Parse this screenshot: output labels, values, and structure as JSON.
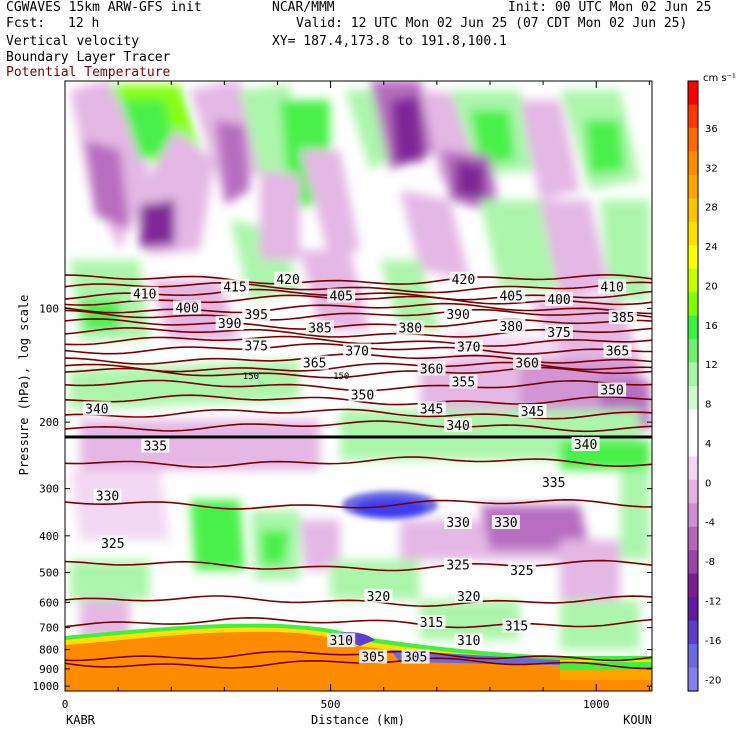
{
  "header": {
    "model": "CGWAVES 15km ARW-GFS init",
    "org": "NCAR/MMM",
    "init": "Init: 00 UTC Mon 02 Jun 25",
    "fcst_label": "Fcst:",
    "fcst_value": "12 h",
    "valid": "Valid: 12 UTC Mon 02 Jun 25 (07 CDT Mon 02 Jun 25)",
    "field1": "Vertical velocity",
    "field2": "Boundary Layer Tracer",
    "field3": "Potential Temperature",
    "xy": "XY= 187.4,173.8 to 191.8,100.1"
  },
  "chart_data": {
    "type": "heatmap",
    "xlabel": "Distance (km)",
    "ylabel": "Pressure (hPa), log scale",
    "x_ticks": [
      0,
      500,
      1000
    ],
    "xlim": [
      0,
      1105
    ],
    "ylim": [
      1030,
      25
    ],
    "y_scale": "log",
    "y_ticks": [
      100,
      200,
      300,
      400,
      500,
      600,
      700,
      800,
      900,
      1000
    ],
    "left_endpoint": "KABR",
    "right_endpoint": "KOUN",
    "colorbar": {
      "units": "cm s⁻¹",
      "tick_labels": [
        "36",
        "32",
        "28",
        "24",
        "20",
        "16",
        "12",
        "8",
        "4",
        "0",
        "-4",
        "-8",
        "-12",
        "-16",
        "-20"
      ],
      "colors": [
        "#ff0000",
        "#ff3a00",
        "#ff6a00",
        "#ff8c00",
        "#ffa500",
        "#ffc400",
        "#ffe100",
        "#ffff00",
        "#c8ff00",
        "#80ff00",
        "#40f040",
        "#70f070",
        "#a8f5a8",
        "#d0fad0",
        "#ffffff",
        "#ffffff",
        "#f2d6f2",
        "#e3b4e3",
        "#cf8fd2",
        "#b466bd",
        "#9a44a8",
        "#7a1f93",
        "#5f1c9e",
        "#5b3fc8",
        "#6a6ae0",
        "#8080f0"
      ]
    },
    "theta_contours_K": [
      {
        "value": 305,
        "p_hPa": 870
      },
      {
        "value": 310,
        "p_hPa": 830
      },
      {
        "value": 315,
        "p_hPa": 680
      },
      {
        "value": 320,
        "p_hPa": 595
      },
      {
        "value": 325,
        "p_hPa": 480
      },
      {
        "value": 330,
        "p_hPa": 330
      },
      {
        "value": 335,
        "p_hPa": 255
      },
      {
        "value": 340,
        "p_hPa": 205
      },
      {
        "value": 345,
        "p_hPa": 190
      },
      {
        "value": 350,
        "p_hPa": 175
      },
      {
        "value": 355,
        "p_hPa": 160
      },
      {
        "value": 360,
        "p_hPa": 148
      },
      {
        "value": 365,
        "p_hPa": 143
      },
      {
        "value": 370,
        "p_hPa": 136
      },
      {
        "value": 375,
        "p_hPa": 128
      },
      {
        "value": 380,
        "p_hPa": 122
      },
      {
        "value": 385,
        "p_hPa": 116
      },
      {
        "value": 390,
        "p_hPa": 110
      },
      {
        "value": 395,
        "p_hPa": 104
      },
      {
        "value": 400,
        "p_hPa": 100
      },
      {
        "value": 405,
        "p_hPa": 95
      },
      {
        "value": 410,
        "p_hPa": 92
      },
      {
        "value": 415,
        "p_hPa": 88
      },
      {
        "value": 420,
        "p_hPa": 84
      }
    ],
    "contour_labels": [
      {
        "text": "420",
        "x": 420,
        "p": 84
      },
      {
        "text": "420",
        "x": 750,
        "p": 84
      },
      {
        "text": "415",
        "x": 320,
        "p": 88
      },
      {
        "text": "410",
        "x": 150,
        "p": 92
      },
      {
        "text": "405",
        "x": 520,
        "p": 93
      },
      {
        "text": "405",
        "x": 840,
        "p": 93
      },
      {
        "text": "400",
        "x": 930,
        "p": 95
      },
      {
        "text": "410",
        "x": 1030,
        "p": 88
      },
      {
        "text": "400",
        "x": 230,
        "p": 100
      },
      {
        "text": "395",
        "x": 360,
        "p": 104
      },
      {
        "text": "390",
        "x": 740,
        "p": 104
      },
      {
        "text": "390",
        "x": 310,
        "p": 110
      },
      {
        "text": "385",
        "x": 480,
        "p": 113
      },
      {
        "text": "380",
        "x": 650,
        "p": 113
      },
      {
        "text": "380",
        "x": 840,
        "p": 112
      },
      {
        "text": "375",
        "x": 930,
        "p": 116
      },
      {
        "text": "385",
        "x": 1050,
        "p": 106
      },
      {
        "text": "375",
        "x": 360,
        "p": 126
      },
      {
        "text": "370",
        "x": 550,
        "p": 130
      },
      {
        "text": "370",
        "x": 760,
        "p": 127
      },
      {
        "text": "365",
        "x": 1040,
        "p": 130
      },
      {
        "text": "365",
        "x": 470,
        "p": 140
      },
      {
        "text": "360",
        "x": 690,
        "p": 145
      },
      {
        "text": "360",
        "x": 870,
        "p": 140
      },
      {
        "text": "355",
        "x": 750,
        "p": 157
      },
      {
        "text": "350",
        "x": 560,
        "p": 170
      },
      {
        "text": "350",
        "x": 1030,
        "p": 165
      },
      {
        "text": "345",
        "x": 690,
        "p": 185
      },
      {
        "text": "345",
        "x": 880,
        "p": 188
      },
      {
        "text": "340",
        "x": 60,
        "p": 185
      },
      {
        "text": "340",
        "x": 740,
        "p": 205
      },
      {
        "text": "340",
        "x": 980,
        "p": 230
      },
      {
        "text": "335",
        "x": 170,
        "p": 232
      },
      {
        "text": "335",
        "x": 920,
        "p": 290
      },
      {
        "text": "330",
        "x": 80,
        "p": 315
      },
      {
        "text": "330",
        "x": 740,
        "p": 370
      },
      {
        "text": "330",
        "x": 830,
        "p": 370
      },
      {
        "text": "325",
        "x": 90,
        "p": 420
      },
      {
        "text": "325",
        "x": 740,
        "p": 480
      },
      {
        "text": "325",
        "x": 860,
        "p": 495
      },
      {
        "text": "320",
        "x": 590,
        "p": 580
      },
      {
        "text": "320",
        "x": 760,
        "p": 580
      },
      {
        "text": "315",
        "x": 690,
        "p": 680
      },
      {
        "text": "315",
        "x": 850,
        "p": 695
      },
      {
        "text": "310",
        "x": 520,
        "p": 760
      },
      {
        "text": "310",
        "x": 760,
        "p": 760
      },
      {
        "text": "305",
        "x": 580,
        "p": 840
      },
      {
        "text": "305",
        "x": 660,
        "p": 840
      }
    ],
    "small_labels": [
      {
        "text": "150",
        "x": 350,
        "p": 150
      },
      {
        "text": "150",
        "x": 520,
        "p": 150
      }
    ]
  }
}
